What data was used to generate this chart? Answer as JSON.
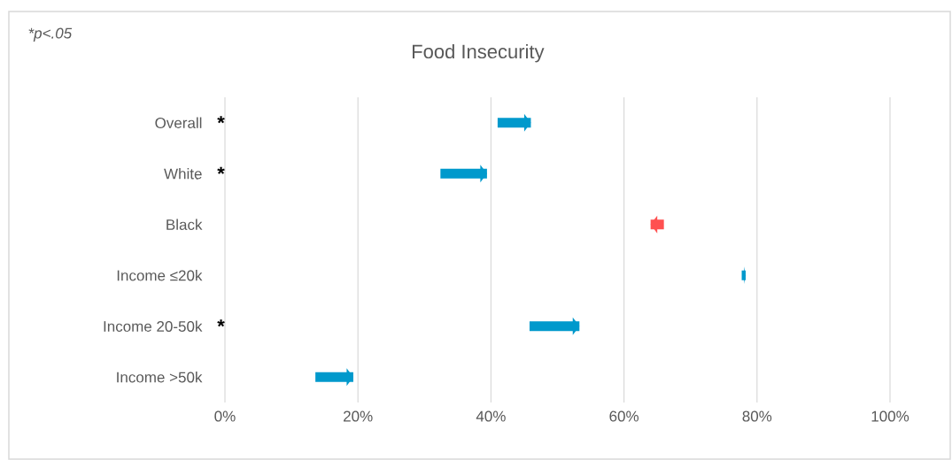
{
  "chart_data": {
    "type": "bar",
    "orientation": "horizontal",
    "title": "Food Insecurity",
    "categories": [
      "Overall",
      "White",
      "Black",
      "Income ≤20k",
      "Income 20-50k",
      "Income >50k"
    ],
    "base": [
      41,
      32.4,
      66,
      77.7,
      45.8,
      13.6
    ],
    "values": [
      5,
      7,
      -2,
      0.6,
      7.5,
      5.7
    ],
    "colors": [
      "#0099cc",
      "#0099cc",
      "#ff5050",
      "#0099cc",
      "#0099cc",
      "#0099cc"
    ],
    "xlim": [
      0,
      100
    ],
    "xticks": [
      {
        "value": 0,
        "label": "0%"
      },
      {
        "value": 20,
        "label": "20%"
      },
      {
        "value": 40,
        "label": "40%"
      },
      {
        "value": 60,
        "label": "60%"
      },
      {
        "value": 80,
        "label": "80%"
      },
      {
        "value": 100,
        "label": "100%"
      }
    ],
    "grid": "x",
    "annotations": [
      "*p<.05",
      "*",
      "*",
      "*"
    ]
  }
}
